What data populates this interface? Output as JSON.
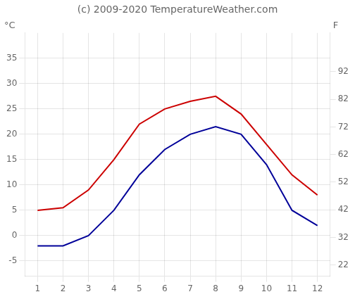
{
  "chart_data": {
    "type": "line",
    "title": "(c) 2009-2020 TemperatureWeather.com",
    "ylabel": "°C",
    "y2label": "F",
    "x": [
      1,
      2,
      3,
      4,
      5,
      6,
      7,
      8,
      9,
      10,
      11,
      12
    ],
    "series": [
      {
        "color": "#cc0000",
        "values": [
          5.0,
          5.5,
          9.0,
          15.0,
          22.0,
          25.0,
          26.5,
          27.5,
          24.0,
          18.0,
          12.0,
          8.0
        ]
      },
      {
        "color": "#000099",
        "values": [
          -2.0,
          -2.0,
          0.0,
          5.0,
          12.0,
          17.0,
          20.0,
          21.5,
          20.0,
          14.0,
          5.0,
          2.0
        ]
      }
    ],
    "xlim": [
      0.5,
      12.5
    ],
    "xticks": [
      1,
      2,
      3,
      4,
      5,
      6,
      7,
      8,
      9,
      10,
      11,
      12
    ],
    "ylim": [
      -8,
      40
    ],
    "yticks": [
      -5,
      0,
      5,
      10,
      15,
      20,
      25,
      30,
      35
    ],
    "y2lim": [
      18,
      106
    ],
    "y2ticks": [
      22,
      32,
      42,
      52,
      62,
      72,
      82,
      92
    ],
    "grid": true
  }
}
